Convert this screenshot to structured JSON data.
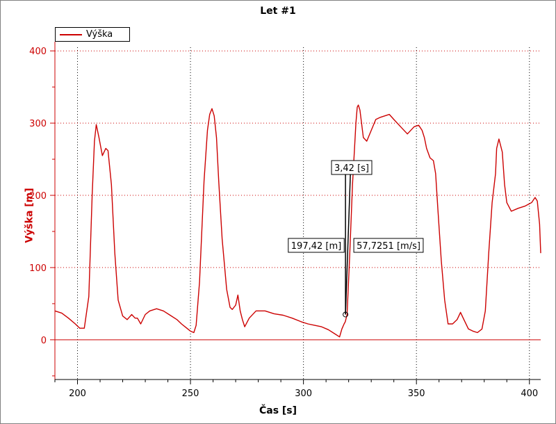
{
  "chart_data": {
    "type": "line",
    "title": "Let #1",
    "xlabel": "Čas [s]",
    "ylabel": "Výška [m]",
    "xlim": [
      190,
      405
    ],
    "ylim": [
      -55,
      405
    ],
    "xticks": [
      200,
      250,
      300,
      350,
      400
    ],
    "yticks": [
      0,
      100,
      200,
      300,
      400
    ],
    "grid": true,
    "legend_position": "top-left",
    "series": [
      {
        "name": "Výška",
        "color": "#cc0000",
        "x": [
          190,
          193,
          196,
          199,
          201,
          203,
          205,
          206.5,
          207.5,
          208.3,
          209.5,
          211,
          212.5,
          213.5,
          215,
          216.5,
          218,
          220,
          222,
          224,
          225.5,
          226.5,
          228,
          230,
          232,
          235,
          238,
          241,
          244,
          246,
          248,
          250,
          251.5,
          252.5,
          254,
          256,
          257.5,
          258.5,
          259.5,
          260.5,
          261.5,
          262.5,
          264,
          266,
          267.5,
          268.5,
          270,
          271,
          272,
          273,
          274,
          276,
          279,
          283,
          287,
          291,
          295,
          299,
          302,
          305,
          308,
          311,
          314,
          316,
          317,
          318,
          318.5,
          319.3,
          320.5,
          321.7,
          322.6,
          323.2,
          323.8,
          324.3,
          325,
          326.5,
          328,
          330,
          332,
          334,
          336,
          338,
          340,
          343,
          346,
          349,
          351,
          352.5,
          353.5,
          354.5,
          356,
          357.5,
          358.5,
          359.5,
          361,
          362.5,
          364,
          366,
          368,
          369.5,
          371,
          373,
          375,
          377,
          379,
          380.5,
          382,
          383.5,
          385,
          385.5,
          386.5,
          388,
          389,
          390,
          392,
          395,
          398,
          401,
          402.5,
          403.5,
          404.5,
          405
        ],
        "y": [
          40,
          37,
          30,
          22,
          16,
          16,
          60,
          200,
          275,
          298,
          280,
          255,
          265,
          262,
          215,
          120,
          55,
          33,
          28,
          35,
          30,
          30,
          22,
          35,
          40,
          43,
          40,
          34,
          28,
          22,
          17,
          12,
          10,
          20,
          80,
          220,
          290,
          312,
          320,
          310,
          280,
          220,
          140,
          70,
          45,
          42,
          48,
          62,
          40,
          28,
          18,
          30,
          40,
          40,
          36,
          34,
          30,
          25,
          22,
          20,
          18,
          14,
          8,
          4,
          15,
          22,
          25,
          35,
          120,
          215,
          265,
          300,
          322,
          325,
          318,
          280,
          275,
          290,
          305,
          308,
          310,
          312,
          305,
          295,
          285,
          295,
          297,
          290,
          280,
          265,
          252,
          248,
          230,
          180,
          110,
          55,
          22,
          22,
          28,
          38,
          28,
          15,
          12,
          10,
          15,
          40,
          120,
          190,
          230,
          265,
          278,
          260,
          215,
          190,
          178,
          182,
          185,
          190,
          197,
          192,
          160,
          120
        ]
      }
    ],
    "annotations": [
      {
        "text": "3,42 [s]"
      },
      {
        "text": "197,42 [m]"
      },
      {
        "text": "57,7251 [m/s]"
      }
    ]
  }
}
